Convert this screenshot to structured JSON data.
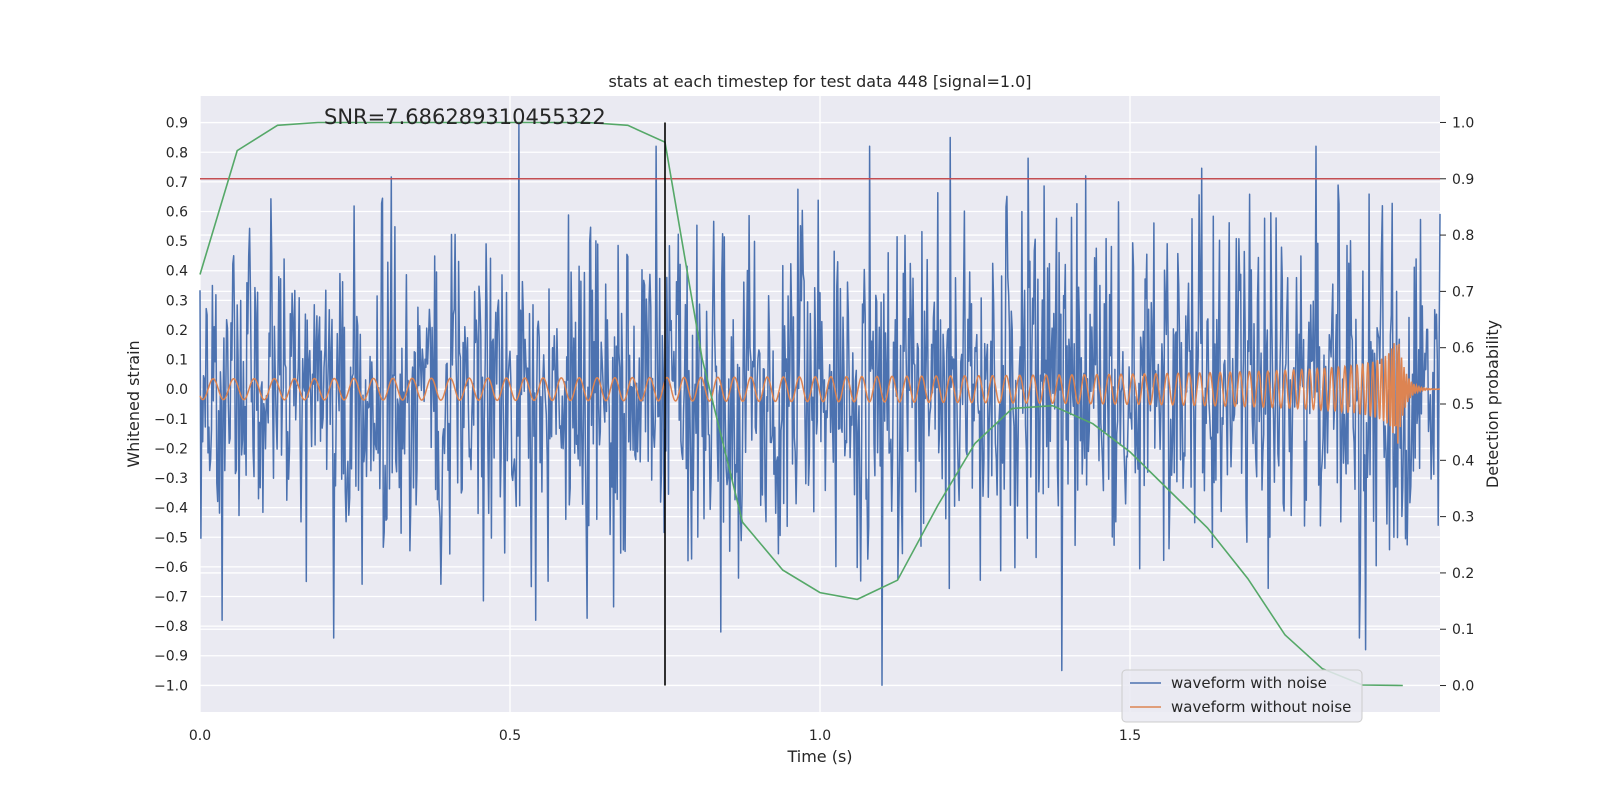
{
  "chart_data": {
    "type": "line",
    "title": "stats at each timestep for test data 448 [signal=1.0]",
    "xlabel": "Time (s)",
    "ylabel_left": "Whitened strain",
    "ylabel_right": "Detection probability",
    "xlim": [
      0.0,
      2.0
    ],
    "ylim_left": [
      -1.09,
      0.99
    ],
    "ylim_right": [
      -0.047,
      1.047
    ],
    "xticks": [
      0.0,
      0.5,
      1.0,
      1.5
    ],
    "xtick_labels": [
      "0.0",
      "0.5",
      "1.0",
      "1.5"
    ],
    "yticks_left": [
      0.9,
      0.8,
      0.7,
      0.6,
      0.5,
      0.4,
      0.3,
      0.2,
      0.1,
      0.0,
      -0.1,
      -0.2,
      -0.3,
      -0.4,
      -0.5,
      -0.6,
      -0.7,
      -0.8,
      -0.9,
      -1.0
    ],
    "ytick_labels_left": [
      "0.9",
      "0.8",
      "0.7",
      "0.6",
      "0.5",
      "0.4",
      "0.3",
      "0.2",
      "0.1",
      "0.0",
      "−0.1",
      "−0.2",
      "−0.3",
      "−0.4",
      "−0.5",
      "−0.6",
      "−0.7",
      "−0.8",
      "−0.9",
      "−1.0"
    ],
    "yticks_right": [
      1.0,
      0.9,
      0.8,
      0.7,
      0.6,
      0.5,
      0.4,
      0.3,
      0.2,
      0.1,
      0.0
    ],
    "ytick_labels_right": [
      "1.0",
      "0.9",
      "0.8",
      "0.7",
      "0.6",
      "0.5",
      "0.4",
      "0.3",
      "0.2",
      "0.1",
      "0.0"
    ],
    "grid": true,
    "legend_position": "bottom-right",
    "annotation": "SNR=7.686289310455322",
    "threshold_right": 0.9,
    "marker_time": 0.75,
    "series": [
      {
        "name": "waveform with noise",
        "color": "#4c72b0",
        "axis": "left",
        "kind": "noise",
        "duration": 2.0,
        "amplitude_rms": 0.28,
        "spikes": [
          {
            "x": 0.216,
            "y": -0.84
          },
          {
            "x": 0.514,
            "y": 0.9
          },
          {
            "x": 0.542,
            "y": -0.78
          },
          {
            "x": 0.735,
            "y": -0.74
          },
          {
            "x": 0.735,
            "y": 0.82
          },
          {
            "x": 0.84,
            "y": -0.82
          },
          {
            "x": 1.08,
            "y": 0.82
          },
          {
            "x": 1.1,
            "y": -1.0
          },
          {
            "x": 1.21,
            "y": 0.85
          },
          {
            "x": 1.39,
            "y": -0.95
          },
          {
            "x": 1.8,
            "y": 0.82
          },
          {
            "x": 1.87,
            "y": -0.84
          },
          {
            "x": 1.88,
            "y": -0.88
          }
        ]
      },
      {
        "name": "waveform without noise",
        "color": "#dd8452",
        "axis": "left",
        "kind": "chirp",
        "merger_time": 1.93,
        "f_start": 30,
        "amp_start": 0.035,
        "amp_peak": 0.22
      },
      {
        "name": "detection probability",
        "color": "#55a868",
        "axis": "right",
        "x": [
          0.0,
          0.06,
          0.125,
          0.19,
          0.25,
          0.31,
          0.375,
          0.44,
          0.5,
          0.56,
          0.625,
          0.69,
          0.75,
          0.81,
          0.875,
          0.94,
          1.0,
          1.06,
          1.125,
          1.19,
          1.25,
          1.31,
          1.375,
          1.44,
          1.5,
          1.56,
          1.625,
          1.69,
          1.75,
          1.81,
          1.875,
          1.94
        ],
        "y": [
          0.73,
          0.95,
          0.995,
          1.0,
          1.0,
          1.0,
          1.0,
          1.0,
          1.0,
          1.0,
          1.0,
          0.995,
          0.965,
          0.58,
          0.29,
          0.205,
          0.165,
          0.153,
          0.187,
          0.32,
          0.43,
          0.492,
          0.497,
          0.465,
          0.415,
          0.35,
          0.28,
          0.19,
          0.09,
          0.03,
          0.001,
          0.0
        ]
      }
    ]
  }
}
